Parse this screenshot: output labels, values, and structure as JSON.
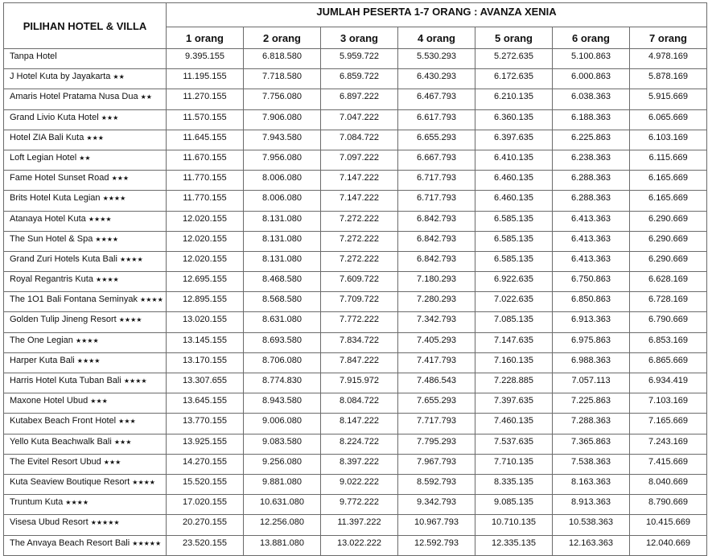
{
  "header": {
    "hotel_col": "PILIHAN HOTEL & VILLA",
    "group_title": "JUMLAH PESERTA 1-7 ORANG : AVANZA XENIA",
    "columns": [
      "1 orang",
      "2 orang",
      "3 orang",
      "4 orang",
      "5 orang",
      "6 orang",
      "7 orang"
    ]
  },
  "rows": [
    {
      "name": "Tanpa Hotel",
      "stars": "",
      "prices": [
        "9.395.155",
        "6.818.580",
        "5.959.722",
        "5.530.293",
        "5.272.635",
        "5.100.863",
        "4.978.169"
      ]
    },
    {
      "name": "J Hotel Kuta by Jayakarta",
      "stars": "★★",
      "prices": [
        "11.195.155",
        "7.718.580",
        "6.859.722",
        "6.430.293",
        "6.172.635",
        "6.000.863",
        "5.878.169"
      ]
    },
    {
      "name": "Amaris Hotel Pratama Nusa Dua",
      "stars": "★★",
      "prices": [
        "11.270.155",
        "7.756.080",
        "6.897.222",
        "6.467.793",
        "6.210.135",
        "6.038.363",
        "5.915.669"
      ]
    },
    {
      "name": "Grand Livio Kuta Hotel",
      "stars": "★★★",
      "prices": [
        "11.570.155",
        "7.906.080",
        "7.047.222",
        "6.617.793",
        "6.360.135",
        "6.188.363",
        "6.065.669"
      ]
    },
    {
      "name": "Hotel ZIA Bali Kuta",
      "stars": "★★★",
      "prices": [
        "11.645.155",
        "7.943.580",
        "7.084.722",
        "6.655.293",
        "6.397.635",
        "6.225.863",
        "6.103.169"
      ]
    },
    {
      "name": "Loft Legian Hotel",
      "stars": "★★",
      "prices": [
        "11.670.155",
        "7.956.080",
        "7.097.222",
        "6.667.793",
        "6.410.135",
        "6.238.363",
        "6.115.669"
      ]
    },
    {
      "name": "Fame Hotel Sunset Road",
      "stars": "★★★",
      "prices": [
        "11.770.155",
        "8.006.080",
        "7.147.222",
        "6.717.793",
        "6.460.135",
        "6.288.363",
        "6.165.669"
      ]
    },
    {
      "name": "Brits Hotel Kuta Legian",
      "stars": "★★★★",
      "prices": [
        "11.770.155",
        "8.006.080",
        "7.147.222",
        "6.717.793",
        "6.460.135",
        "6.288.363",
        "6.165.669"
      ]
    },
    {
      "name": "Atanaya Hotel Kuta",
      "stars": "★★★★",
      "prices": [
        "12.020.155",
        "8.131.080",
        "7.272.222",
        "6.842.793",
        "6.585.135",
        "6.413.363",
        "6.290.669"
      ]
    },
    {
      "name": "The Sun Hotel & Spa",
      "stars": "★★★★",
      "prices": [
        "12.020.155",
        "8.131.080",
        "7.272.222",
        "6.842.793",
        "6.585.135",
        "6.413.363",
        "6.290.669"
      ]
    },
    {
      "name": "Grand Zuri Hotels Kuta Bali",
      "stars": "★★★★",
      "prices": [
        "12.020.155",
        "8.131.080",
        "7.272.222",
        "6.842.793",
        "6.585.135",
        "6.413.363",
        "6.290.669"
      ]
    },
    {
      "name": "Royal Regantris Kuta",
      "stars": "★★★★",
      "prices": [
        "12.695.155",
        "8.468.580",
        "7.609.722",
        "7.180.293",
        "6.922.635",
        "6.750.863",
        "6.628.169"
      ]
    },
    {
      "name": "The 1O1 Bali Fontana Seminyak",
      "stars": "★★★★",
      "prices": [
        "12.895.155",
        "8.568.580",
        "7.709.722",
        "7.280.293",
        "7.022.635",
        "6.850.863",
        "6.728.169"
      ]
    },
    {
      "name": "Golden Tulip Jineng Resort",
      "stars": "★★★★",
      "prices": [
        "13.020.155",
        "8.631.080",
        "7.772.222",
        "7.342.793",
        "7.085.135",
        "6.913.363",
        "6.790.669"
      ]
    },
    {
      "name": "The One Legian",
      "stars": "★★★★",
      "prices": [
        "13.145.155",
        "8.693.580",
        "7.834.722",
        "7.405.293",
        "7.147.635",
        "6.975.863",
        "6.853.169"
      ]
    },
    {
      "name": "Harper Kuta Bali",
      "stars": "★★★★",
      "prices": [
        "13.170.155",
        "8.706.080",
        "7.847.222",
        "7.417.793",
        "7.160.135",
        "6.988.363",
        "6.865.669"
      ]
    },
    {
      "name": "Harris Hotel Kuta Tuban Bali",
      "stars": "★★★★",
      "prices": [
        "13.307.655",
        "8.774.830",
        "7.915.972",
        "7.486.543",
        "7.228.885",
        "7.057.113",
        "6.934.419"
      ]
    },
    {
      "name": "Maxone Hotel Ubud",
      "stars": "★★★",
      "prices": [
        "13.645.155",
        "8.943.580",
        "8.084.722",
        "7.655.293",
        "7.397.635",
        "7.225.863",
        "7.103.169"
      ]
    },
    {
      "name": "Kutabex Beach Front Hotel",
      "stars": "★★★",
      "prices": [
        "13.770.155",
        "9.006.080",
        "8.147.222",
        "7.717.793",
        "7.460.135",
        "7.288.363",
        "7.165.669"
      ]
    },
    {
      "name": "Yello Kuta Beachwalk Bali",
      "stars": "★★★",
      "prices": [
        "13.925.155",
        "9.083.580",
        "8.224.722",
        "7.795.293",
        "7.537.635",
        "7.365.863",
        "7.243.169"
      ]
    },
    {
      "name": "The Evitel Resort Ubud",
      "stars": "★★★",
      "prices": [
        "14.270.155",
        "9.256.080",
        "8.397.222",
        "7.967.793",
        "7.710.135",
        "7.538.363",
        "7.415.669"
      ]
    },
    {
      "name": "Kuta Seaview Boutique Resort",
      "stars": "★★★★",
      "prices": [
        "15.520.155",
        "9.881.080",
        "9.022.222",
        "8.592.793",
        "8.335.135",
        "8.163.363",
        "8.040.669"
      ]
    },
    {
      "name": "Truntum Kuta",
      "stars": "★★★★",
      "prices": [
        "17.020.155",
        "10.631.080",
        "9.772.222",
        "9.342.793",
        "9.085.135",
        "8.913.363",
        "8.790.669"
      ]
    },
    {
      "name": "Visesa Ubud Resort",
      "stars": "★★★★★",
      "prices": [
        "20.270.155",
        "12.256.080",
        "11.397.222",
        "10.967.793",
        "10.710.135",
        "10.538.363",
        "10.415.669"
      ]
    },
    {
      "name": "The Anvaya Beach Resort Bali",
      "stars": "★★★★★",
      "prices": [
        "23.520.155",
        "13.881.080",
        "13.022.222",
        "12.592.793",
        "12.335.135",
        "12.163.363",
        "12.040.669"
      ]
    }
  ]
}
